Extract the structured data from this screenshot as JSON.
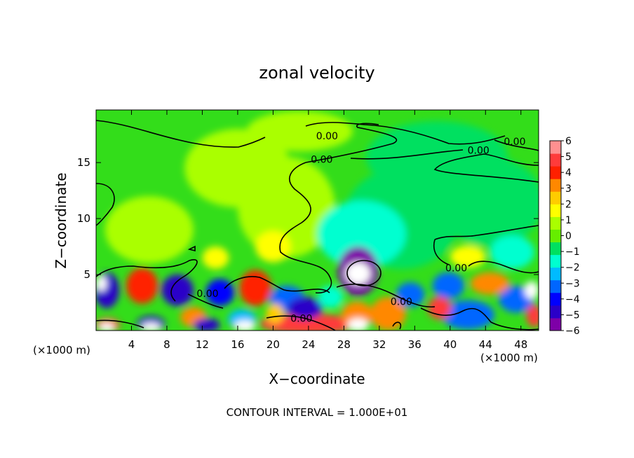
{
  "chart_data": {
    "type": "heatmap",
    "title": "zonal velocity",
    "xlabel": "X−coordinate",
    "ylabel": "Z−coordinate",
    "x_unit_left": "(×1000 m)",
    "x_unit_right": "(×1000 m)",
    "footer": "CONTOUR INTERVAL = 1.000E+01",
    "xlim": [
      0,
      50
    ],
    "ylim": [
      0,
      19.7
    ],
    "x_ticks": [
      {
        "value": 4,
        "label": "4"
      },
      {
        "value": 8,
        "label": "8"
      },
      {
        "value": 12,
        "label": "12"
      },
      {
        "value": 16,
        "label": "16"
      },
      {
        "value": 20,
        "label": "20"
      },
      {
        "value": 24,
        "label": "24"
      },
      {
        "value": 28,
        "label": "28"
      },
      {
        "value": 32,
        "label": "32"
      },
      {
        "value": 36,
        "label": "36"
      },
      {
        "value": 40,
        "label": "40"
      },
      {
        "value": 44,
        "label": "44"
      },
      {
        "value": 48,
        "label": "48"
      }
    ],
    "y_ticks": [
      {
        "value": 5,
        "label": "5"
      },
      {
        "value": 10,
        "label": "10"
      },
      {
        "value": 15,
        "label": "15"
      }
    ],
    "colorbar": {
      "range": [
        -6,
        6
      ],
      "labels": [
        {
          "value": 6,
          "label": "6"
        },
        {
          "value": 5,
          "label": "5"
        },
        {
          "value": 4,
          "label": "4"
        },
        {
          "value": 3,
          "label": "3"
        },
        {
          "value": 2,
          "label": "2"
        },
        {
          "value": 1,
          "label": "1"
        },
        {
          "value": 0,
          "label": "0"
        },
        {
          "value": -1,
          "label": "−1"
        },
        {
          "value": -2,
          "label": "−2"
        },
        {
          "value": -3,
          "label": "−3"
        },
        {
          "value": -4,
          "label": "−4"
        },
        {
          "value": -5,
          "label": "−5"
        },
        {
          "value": -6,
          "label": "−6"
        }
      ],
      "colors": [
        "#7e00a8",
        "#2a00c8",
        "#0000ff",
        "#0066ff",
        "#00bbff",
        "#00ffd0",
        "#00e060",
        "#66ee00",
        "#aaff00",
        "#ffff00",
        "#ffcc00",
        "#ff8800",
        "#ff2000",
        "#ff3b3b",
        "#ff9090"
      ]
    },
    "contour_labels": [
      {
        "x": 26.1,
        "y": 17.4,
        "label": "0.00"
      },
      {
        "x": 25.5,
        "y": 15.3,
        "label": "0.00"
      },
      {
        "x": 43.2,
        "y": 16.1,
        "label": "0.00"
      },
      {
        "x": 47.3,
        "y": 16.9,
        "label": "0.00"
      },
      {
        "x": 40.7,
        "y": 5.6,
        "label": "0.00"
      },
      {
        "x": 34.5,
        "y": 2.6,
        "label": "0.00"
      },
      {
        "x": 12.6,
        "y": 3.3,
        "label": "0.00"
      },
      {
        "x": 23.2,
        "y": 1.1,
        "label": "0.00"
      }
    ],
    "features": [
      {
        "x": 29.6,
        "y": 5.3,
        "rx": 2.3,
        "ry": 2.2,
        "value": -5.2
      },
      {
        "x": 29.6,
        "y": 5.1,
        "rx": 1.4,
        "ry": 1.0,
        "value": -7.0
      },
      {
        "x": 5.2,
        "y": 4.0,
        "rx": 1.8,
        "ry": 1.6,
        "value": 4.2
      },
      {
        "x": 9.2,
        "y": 3.6,
        "rx": 1.8,
        "ry": 1.4,
        "value": -4.5
      },
      {
        "x": 1.2,
        "y": 3.6,
        "rx": 1.4,
        "ry": 1.6,
        "value": -5.0
      },
      {
        "x": 0.6,
        "y": 4.2,
        "rx": 0.6,
        "ry": 0.7,
        "value": -7.0
      },
      {
        "x": 14.0,
        "y": 3.4,
        "rx": 1.6,
        "ry": 1.2,
        "value": -4.0
      },
      {
        "x": 18.0,
        "y": 3.8,
        "rx": 1.8,
        "ry": 1.6,
        "value": 4.0
      },
      {
        "x": 21.6,
        "y": 2.8,
        "rx": 2.0,
        "ry": 1.2,
        "value": -3.0
      },
      {
        "x": 23.6,
        "y": 2.0,
        "rx": 2.0,
        "ry": 1.0,
        "value": -5.0
      },
      {
        "x": 24.0,
        "y": 0.6,
        "rx": 5.5,
        "ry": 0.9,
        "value": 4.5
      },
      {
        "x": 29.5,
        "y": 1.4,
        "rx": 1.8,
        "ry": 1.2,
        "value": 3.5
      },
      {
        "x": 29.6,
        "y": 0.5,
        "rx": 1.2,
        "ry": 0.6,
        "value": 7.0
      },
      {
        "x": 33.0,
        "y": 1.5,
        "rx": 2.0,
        "ry": 1.5,
        "value": 3.5
      },
      {
        "x": 35.5,
        "y": 3.2,
        "rx": 1.6,
        "ry": 1.1,
        "value": -3.0
      },
      {
        "x": 38.8,
        "y": 2.0,
        "rx": 1.3,
        "ry": 1.0,
        "value": 4.5
      },
      {
        "x": 39.8,
        "y": 4.0,
        "rx": 1.8,
        "ry": 1.2,
        "value": -3.0
      },
      {
        "x": 42.0,
        "y": 1.4,
        "rx": 3.0,
        "ry": 1.3,
        "value": -3.5
      },
      {
        "x": 44.5,
        "y": 4.2,
        "rx": 2.2,
        "ry": 1.0,
        "value": 3.0
      },
      {
        "x": 47.5,
        "y": 2.8,
        "rx": 2.0,
        "ry": 1.2,
        "value": -3.5
      },
      {
        "x": 49.2,
        "y": 3.6,
        "rx": 0.8,
        "ry": 0.8,
        "value": -6.5
      },
      {
        "x": 49.5,
        "y": 1.3,
        "rx": 0.9,
        "ry": 1.0,
        "value": 4.5
      },
      {
        "x": 1.3,
        "y": 0.5,
        "rx": 1.4,
        "ry": 0.6,
        "value": 4.5
      },
      {
        "x": 1.2,
        "y": 0.3,
        "rx": 0.9,
        "ry": 0.4,
        "value": 7.0
      },
      {
        "x": 6.2,
        "y": 0.6,
        "rx": 1.6,
        "ry": 0.7,
        "value": -4.5
      },
      {
        "x": 6.2,
        "y": 0.3,
        "rx": 1.1,
        "ry": 0.4,
        "value": -7.0
      },
      {
        "x": 11.0,
        "y": 1.2,
        "rx": 1.5,
        "ry": 0.9,
        "value": 3.0
      },
      {
        "x": 12.5,
        "y": 0.5,
        "rx": 1.5,
        "ry": 0.6,
        "value": -4.5
      },
      {
        "x": 16.5,
        "y": 1.0,
        "rx": 1.6,
        "ry": 0.9,
        "value": -2.5
      },
      {
        "x": 16.8,
        "y": 0.4,
        "rx": 1.2,
        "ry": 0.5,
        "value": 7.0
      },
      {
        "x": 20.2,
        "y": 1.5,
        "rx": 1.0,
        "ry": 0.9,
        "value": 2.5
      },
      {
        "x": 26.5,
        "y": 3.0,
        "rx": 1.4,
        "ry": 1.0,
        "value": -1.5
      },
      {
        "x": 13.5,
        "y": 6.5,
        "rx": 1.5,
        "ry": 1.0,
        "value": 1.5
      },
      {
        "x": 20.0,
        "y": 7.5,
        "rx": 2.0,
        "ry": 1.4,
        "value": 1.5
      },
      {
        "x": 30.0,
        "y": 8.6,
        "rx": 5.0,
        "ry": 3.0,
        "value": -1.2
      },
      {
        "x": 34.5,
        "y": 10.0,
        "rx": 6.5,
        "ry": 4.5,
        "value": -0.9
      },
      {
        "x": 44.5,
        "y": 11.5,
        "rx": 6.0,
        "ry": 4.0,
        "value": -0.8
      },
      {
        "x": 38.5,
        "y": 15.5,
        "rx": 8.0,
        "ry": 3.2,
        "value": -0.6
      },
      {
        "x": 21.5,
        "y": 11.0,
        "rx": 5.5,
        "ry": 4.5,
        "value": 0.9
      },
      {
        "x": 16.0,
        "y": 14.5,
        "rx": 6.0,
        "ry": 3.5,
        "value": 0.9
      },
      {
        "x": 23.0,
        "y": 17.8,
        "rx": 6.0,
        "ry": 1.8,
        "value": 0.7
      },
      {
        "x": 6.0,
        "y": 9.0,
        "rx": 5.0,
        "ry": 3.0,
        "value": 0.5
      },
      {
        "x": 47.0,
        "y": 7.0,
        "rx": 2.5,
        "ry": 1.5,
        "value": -1.5
      },
      {
        "x": 42.0,
        "y": 6.6,
        "rx": 2.0,
        "ry": 1.0,
        "value": 1.6
      }
    ]
  }
}
